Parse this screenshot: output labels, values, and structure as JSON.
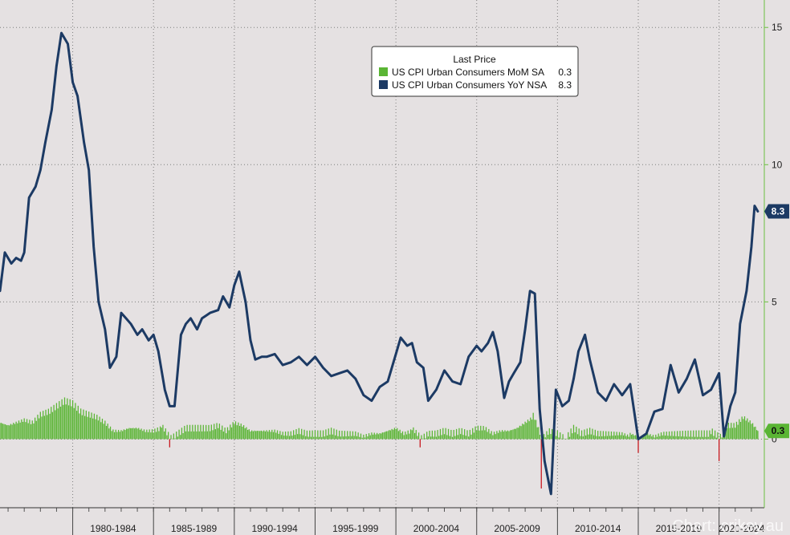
{
  "chart_data": {
    "type": "line",
    "title": "",
    "legend_title": "Last Price",
    "legend_position": "top-center",
    "grid": true,
    "ylim": [
      -2.5,
      16
    ],
    "y_axis_side": "right",
    "y_ticks": [
      0,
      5,
      10,
      15
    ],
    "xlim": [
      1975.5,
      2022.8
    ],
    "x_tick_labels": [
      "1980-1984",
      "1985-1989",
      "1990-1994",
      "1995-1999",
      "2000-2004",
      "2005-2009",
      "2010-2014",
      "2015-2019",
      "2020-2024"
    ],
    "x_tick_positions": [
      1980,
      1985,
      1990,
      1995,
      2000,
      2005,
      2010,
      2015,
      2020
    ],
    "series": [
      {
        "name": "US CPI Urban Consumers MoM SA",
        "last_value": "0.3",
        "kind": "bar",
        "color": "#5ab534",
        "negative_color": "#c8171e",
        "x": [
          1975.5,
          1976.0,
          1976.5,
          1977.0,
          1977.5,
          1978.0,
          1978.5,
          1979.0,
          1979.5,
          1980.0,
          1980.5,
          1981.0,
          1981.5,
          1982.0,
          1982.5,
          1983.0,
          1983.5,
          1984.0,
          1984.5,
          1985.0,
          1985.5,
          1986.0,
          1986.5,
          1987.0,
          1987.5,
          1988.0,
          1988.5,
          1989.0,
          1989.5,
          1990.0,
          1990.5,
          1991.0,
          1991.5,
          1992.0,
          1992.5,
          1993.0,
          1993.5,
          1994.0,
          1994.5,
          1995.0,
          1995.5,
          1996.0,
          1996.5,
          1997.0,
          1997.5,
          1998.0,
          1998.5,
          1999.0,
          1999.5,
          2000.0,
          2000.5,
          2001.0,
          2001.5,
          2002.0,
          2002.5,
          2003.0,
          2003.5,
          2004.0,
          2004.5,
          2005.0,
          2005.5,
          2006.0,
          2006.5,
          2007.0,
          2007.5,
          2008.0,
          2008.5,
          2009.0,
          2009.5,
          2010.0,
          2010.5,
          2011.0,
          2011.5,
          2012.0,
          2012.5,
          2013.0,
          2013.5,
          2014.0,
          2014.5,
          2015.0,
          2015.5,
          2016.0,
          2016.5,
          2017.0,
          2017.5,
          2018.0,
          2018.5,
          2019.0,
          2019.5,
          2020.0,
          2020.5,
          2021.0,
          2021.5,
          2022.0,
          2022.4
        ],
        "values": [
          0.6,
          0.5,
          0.6,
          0.7,
          0.6,
          0.9,
          1.0,
          1.2,
          1.4,
          1.3,
          1.0,
          0.9,
          0.8,
          0.6,
          0.3,
          0.3,
          0.4,
          0.4,
          0.3,
          0.3,
          0.4,
          -0.3,
          0.2,
          0.4,
          0.4,
          0.4,
          0.4,
          0.5,
          0.3,
          0.6,
          0.5,
          0.3,
          0.3,
          0.3,
          0.3,
          0.2,
          0.2,
          0.3,
          0.2,
          0.2,
          0.2,
          0.3,
          0.2,
          0.2,
          0.2,
          0.1,
          0.2,
          0.2,
          0.3,
          0.4,
          0.2,
          0.3,
          -0.3,
          0.2,
          0.2,
          0.3,
          0.2,
          0.3,
          0.2,
          0.4,
          0.4,
          0.2,
          0.3,
          0.3,
          0.4,
          0.6,
          0.8,
          -1.8,
          0.3,
          0.2,
          0.0,
          0.4,
          0.2,
          0.3,
          0.2,
          0.2,
          0.2,
          0.2,
          0.1,
          -0.5,
          0.2,
          0.1,
          0.2,
          0.2,
          0.2,
          0.2,
          0.2,
          0.2,
          0.2,
          -0.8,
          0.5,
          0.5,
          0.8,
          0.6,
          0.3
        ]
      },
      {
        "name": "US CPI Urban Consumers YoY NSA",
        "last_value": "8.3",
        "kind": "line",
        "color": "#1c3a64",
        "x": [
          1975.5,
          1975.8,
          1976.2,
          1976.5,
          1976.8,
          1977.0,
          1977.3,
          1977.7,
          1978.0,
          1978.3,
          1978.7,
          1979.0,
          1979.3,
          1979.7,
          1980.0,
          1980.3,
          1980.7,
          1981.0,
          1981.3,
          1981.6,
          1982.0,
          1982.3,
          1982.7,
          1983.0,
          1983.3,
          1983.6,
          1984.0,
          1984.3,
          1984.7,
          1985.0,
          1985.3,
          1985.7,
          1986.0,
          1986.3,
          1986.7,
          1987.0,
          1987.3,
          1987.7,
          1988.0,
          1988.5,
          1989.0,
          1989.3,
          1989.7,
          1990.0,
          1990.3,
          1990.7,
          1991.0,
          1991.3,
          1991.7,
          1992.0,
          1992.5,
          1993.0,
          1993.5,
          1994.0,
          1994.5,
          1995.0,
          1995.5,
          1996.0,
          1996.5,
          1997.0,
          1997.5,
          1998.0,
          1998.5,
          1999.0,
          1999.5,
          2000.0,
          2000.3,
          2000.7,
          2001.0,
          2001.3,
          2001.7,
          2002.0,
          2002.5,
          2003.0,
          2003.5,
          2004.0,
          2004.5,
          2005.0,
          2005.3,
          2005.7,
          2006.0,
          2006.3,
          2006.7,
          2007.0,
          2007.3,
          2007.7,
          2008.0,
          2008.3,
          2008.6,
          2008.9,
          2009.2,
          2009.6,
          2009.9,
          2010.3,
          2010.7,
          2011.0,
          2011.3,
          2011.7,
          2012.0,
          2012.5,
          2013.0,
          2013.5,
          2014.0,
          2014.5,
          2015.0,
          2015.5,
          2016.0,
          2016.5,
          2017.0,
          2017.5,
          2018.0,
          2018.5,
          2019.0,
          2019.5,
          2020.0,
          2020.3,
          2020.7,
          2021.0,
          2021.3,
          2021.7,
          2022.0,
          2022.2,
          2022.4
        ],
        "values": [
          5.4,
          6.8,
          6.4,
          6.6,
          6.5,
          6.8,
          8.8,
          9.2,
          9.8,
          10.8,
          12.0,
          13.6,
          14.8,
          14.4,
          13.0,
          12.5,
          10.8,
          9.8,
          7.0,
          5.0,
          4.0,
          2.6,
          3.0,
          4.6,
          4.4,
          4.2,
          3.8,
          4.0,
          3.6,
          3.8,
          3.2,
          1.8,
          1.2,
          1.2,
          3.8,
          4.2,
          4.4,
          4.0,
          4.4,
          4.6,
          4.7,
          5.2,
          4.8,
          5.6,
          6.1,
          5.0,
          3.6,
          2.9,
          3.0,
          3.0,
          3.1,
          2.7,
          2.8,
          3.0,
          2.7,
          3.0,
          2.6,
          2.3,
          2.4,
          2.5,
          2.2,
          1.6,
          1.4,
          1.9,
          2.1,
          3.1,
          3.7,
          3.4,
          3.5,
          2.8,
          2.6,
          1.4,
          1.8,
          2.5,
          2.1,
          2.0,
          3.0,
          3.4,
          3.2,
          3.5,
          3.9,
          3.2,
          1.5,
          2.1,
          2.4,
          2.8,
          4.0,
          5.4,
          5.3,
          1.1,
          -0.8,
          -2.0,
          1.8,
          1.2,
          1.4,
          2.2,
          3.2,
          3.8,
          2.9,
          1.7,
          1.4,
          2.0,
          1.6,
          2.0,
          0.0,
          0.2,
          1.0,
          1.1,
          2.7,
          1.7,
          2.2,
          2.9,
          1.6,
          1.8,
          2.4,
          0.1,
          1.2,
          1.7,
          4.2,
          5.4,
          7.0,
          8.5,
          8.3
        ]
      }
    ]
  },
  "watermark": "Chart: crikey.au",
  "colors": {
    "background": "#e5e1e2",
    "grid": "#8a8a8a",
    "axis_right": "#6bbf40"
  }
}
